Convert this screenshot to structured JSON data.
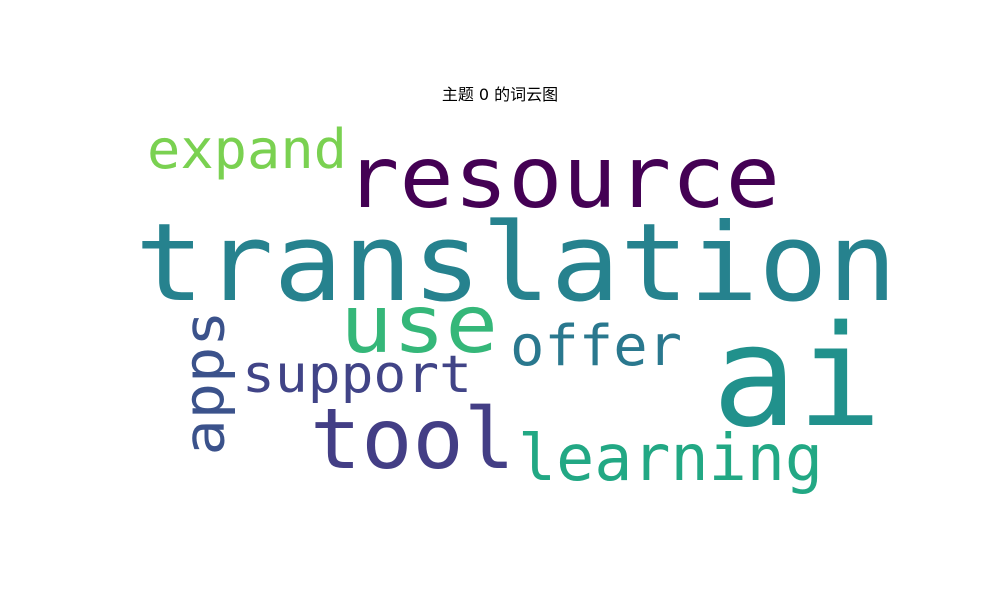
{
  "chart_data": {
    "type": "wordcloud",
    "title": "主题 0 的词云图",
    "colormap": "viridis",
    "background": "#ffffff",
    "words": [
      {
        "text": "translation",
        "color": "#26828e",
        "orientation": "horizontal"
      },
      {
        "text": "ai",
        "color": "#21918c",
        "orientation": "horizontal"
      },
      {
        "text": "resource",
        "color": "#440154",
        "orientation": "horizontal"
      },
      {
        "text": "tool",
        "color": "#433e85",
        "orientation": "horizontal"
      },
      {
        "text": "use",
        "color": "#35b779",
        "orientation": "horizontal"
      },
      {
        "text": "learning",
        "color": "#22a884",
        "orientation": "horizontal"
      },
      {
        "text": "expand",
        "color": "#7ad151",
        "orientation": "horizontal"
      },
      {
        "text": "offer",
        "color": "#2a788e",
        "orientation": "horizontal"
      },
      {
        "text": "support",
        "color": "#414487",
        "orientation": "horizontal"
      },
      {
        "text": "apps",
        "color": "#3b528b",
        "orientation": "vertical"
      }
    ]
  }
}
